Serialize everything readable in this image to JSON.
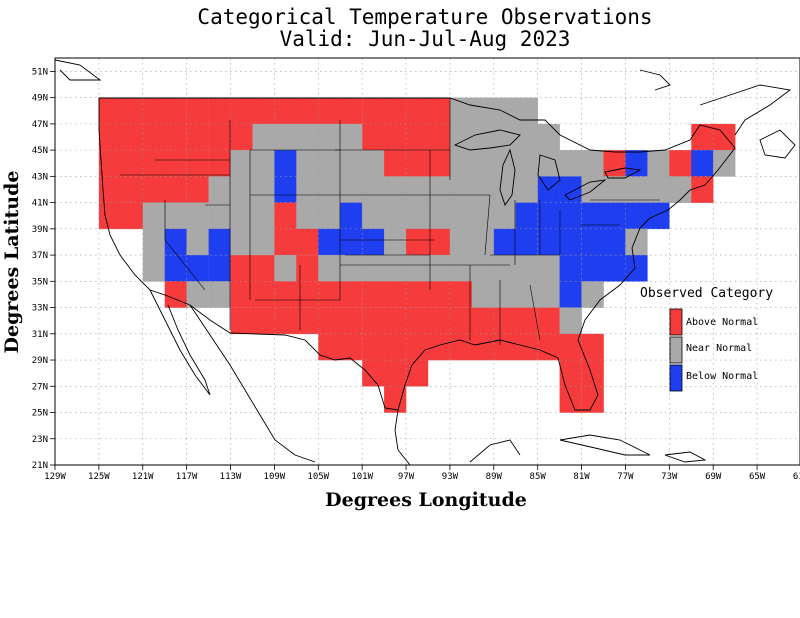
{
  "title_line1": "Categorical Temperature Observations",
  "title_line2": "Valid: Jun-Jul-Aug 2023",
  "x_axis_title": "Degrees Longitude",
  "y_axis_title": "Degrees Latitude",
  "legend": {
    "title": "Observed Category",
    "items": [
      {
        "label": "Above Normal",
        "color": "#f53b3b"
      },
      {
        "label": "Near Normal",
        "color": "#a9a9a9"
      },
      {
        "label": "Below Normal",
        "color": "#1f3ef0"
      }
    ]
  },
  "lon_ticks": [
    "129W",
    "125W",
    "121W",
    "117W",
    "113W",
    "109W",
    "105W",
    "101W",
    "97W",
    "93W",
    "89W",
    "85W",
    "81W",
    "77W",
    "73W",
    "69W",
    "65W",
    "61W"
  ],
  "lat_ticks": [
    "21N",
    "23N",
    "25N",
    "27N",
    "29N",
    "31N",
    "33N",
    "35N",
    "37N",
    "39N",
    "41N",
    "43N",
    "45N",
    "47N",
    "49N",
    "51N"
  ],
  "chart_data": {
    "type": "heatmap",
    "title": "Categorical Temperature Observations",
    "subtitle": "Valid: Jun-Jul-Aug 2023",
    "xlabel": "Degrees Longitude",
    "ylabel": "Degrees Latitude",
    "xlim": [
      "129W",
      "61W"
    ],
    "ylim": [
      "21N",
      "52N"
    ],
    "grid": true,
    "legend_position": "right",
    "categories": [
      "Above Normal",
      "Near Normal",
      "Below Normal"
    ],
    "cell_size_degrees": 2,
    "cells_note": "Each cell: [west_lon, south_lat, category] with A=Above Normal, N=Near Normal, B=Below Normal",
    "cells": [
      [
        "125W",
        "47N",
        "A"
      ],
      [
        "123W",
        "47N",
        "A"
      ],
      [
        "121W",
        "47N",
        "A"
      ],
      [
        "119W",
        "47N",
        "A"
      ],
      [
        "117W",
        "47N",
        "A"
      ],
      [
        "115W",
        "47N",
        "A"
      ],
      [
        "113W",
        "47N",
        "A"
      ],
      [
        "111W",
        "47N",
        "A"
      ],
      [
        "109W",
        "47N",
        "A"
      ],
      [
        "107W",
        "47N",
        "A"
      ],
      [
        "105W",
        "47N",
        "A"
      ],
      [
        "103W",
        "47N",
        "A"
      ],
      [
        "101W",
        "47N",
        "A"
      ],
      [
        "99W",
        "47N",
        "A"
      ],
      [
        "97W",
        "47N",
        "A"
      ],
      [
        "95W",
        "47N",
        "A"
      ],
      [
        "93W",
        "47N",
        "N"
      ],
      [
        "91W",
        "47N",
        "N"
      ],
      [
        "89W",
        "47N",
        "N"
      ],
      [
        "87W",
        "47N",
        "N"
      ],
      [
        "125W",
        "45N",
        "A"
      ],
      [
        "123W",
        "45N",
        "A"
      ],
      [
        "121W",
        "45N",
        "A"
      ],
      [
        "119W",
        "45N",
        "A"
      ],
      [
        "117W",
        "45N",
        "A"
      ],
      [
        "115W",
        "45N",
        "A"
      ],
      [
        "113W",
        "45N",
        "A"
      ],
      [
        "111W",
        "45N",
        "N"
      ],
      [
        "109W",
        "45N",
        "N"
      ],
      [
        "107W",
        "45N",
        "N"
      ],
      [
        "105W",
        "45N",
        "N"
      ],
      [
        "103W",
        "45N",
        "N"
      ],
      [
        "101W",
        "45N",
        "A"
      ],
      [
        "99W",
        "45N",
        "A"
      ],
      [
        "97W",
        "45N",
        "A"
      ],
      [
        "95W",
        "45N",
        "A"
      ],
      [
        "93W",
        "45N",
        "N"
      ],
      [
        "91W",
        "45N",
        "N"
      ],
      [
        "89W",
        "45N",
        "N"
      ],
      [
        "87W",
        "45N",
        "N"
      ],
      [
        "85W",
        "45N",
        "N"
      ],
      [
        "71W",
        "45N",
        "A"
      ],
      [
        "69W",
        "45N",
        "A"
      ],
      [
        "125W",
        "43N",
        "A"
      ],
      [
        "123W",
        "43N",
        "A"
      ],
      [
        "121W",
        "43N",
        "A"
      ],
      [
        "119W",
        "43N",
        "A"
      ],
      [
        "117W",
        "43N",
        "A"
      ],
      [
        "115W",
        "43N",
        "A"
      ],
      [
        "113W",
        "43N",
        "N"
      ],
      [
        "111W",
        "43N",
        "N"
      ],
      [
        "109W",
        "43N",
        "B"
      ],
      [
        "107W",
        "43N",
        "N"
      ],
      [
        "105W",
        "43N",
        "N"
      ],
      [
        "103W",
        "43N",
        "N"
      ],
      [
        "101W",
        "43N",
        "N"
      ],
      [
        "99W",
        "43N",
        "A"
      ],
      [
        "97W",
        "43N",
        "A"
      ],
      [
        "95W",
        "43N",
        "A"
      ],
      [
        "93W",
        "43N",
        "N"
      ],
      [
        "91W",
        "43N",
        "N"
      ],
      [
        "89W",
        "43N",
        "N"
      ],
      [
        "87W",
        "43N",
        "N"
      ],
      [
        "85W",
        "43N",
        "N"
      ],
      [
        "83W",
        "43N",
        "N"
      ],
      [
        "81W",
        "43N",
        "N"
      ],
      [
        "79W",
        "43N",
        "A"
      ],
      [
        "77W",
        "43N",
        "B"
      ],
      [
        "75W",
        "43N",
        "N"
      ],
      [
        "73W",
        "43N",
        "A"
      ],
      [
        "71W",
        "43N",
        "B"
      ],
      [
        "69W",
        "43N",
        "N"
      ],
      [
        "125W",
        "41N",
        "A"
      ],
      [
        "123W",
        "41N",
        "A"
      ],
      [
        "121W",
        "41N",
        "A"
      ],
      [
        "119W",
        "41N",
        "A"
      ],
      [
        "117W",
        "41N",
        "A"
      ],
      [
        "115W",
        "41N",
        "N"
      ],
      [
        "113W",
        "41N",
        "N"
      ],
      [
        "111W",
        "41N",
        "N"
      ],
      [
        "109W",
        "41N",
        "B"
      ],
      [
        "107W",
        "41N",
        "N"
      ],
      [
        "105W",
        "41N",
        "N"
      ],
      [
        "103W",
        "41N",
        "N"
      ],
      [
        "101W",
        "41N",
        "N"
      ],
      [
        "99W",
        "41N",
        "N"
      ],
      [
        "97W",
        "41N",
        "N"
      ],
      [
        "95W",
        "41N",
        "N"
      ],
      [
        "93W",
        "41N",
        "N"
      ],
      [
        "91W",
        "41N",
        "N"
      ],
      [
        "89W",
        "41N",
        "N"
      ],
      [
        "87W",
        "41N",
        "N"
      ],
      [
        "85W",
        "41N",
        "B"
      ],
      [
        "83W",
        "41N",
        "B"
      ],
      [
        "81W",
        "41N",
        "N"
      ],
      [
        "79W",
        "41N",
        "N"
      ],
      [
        "77W",
        "41N",
        "N"
      ],
      [
        "75W",
        "41N",
        "N"
      ],
      [
        "73W",
        "41N",
        "N"
      ],
      [
        "71W",
        "41N",
        "A"
      ],
      [
        "125W",
        "39N",
        "A"
      ],
      [
        "123W",
        "39N",
        "A"
      ],
      [
        "121W",
        "39N",
        "N"
      ],
      [
        "119W",
        "39N",
        "N"
      ],
      [
        "117W",
        "39N",
        "N"
      ],
      [
        "115W",
        "39N",
        "N"
      ],
      [
        "113W",
        "39N",
        "N"
      ],
      [
        "111W",
        "39N",
        "N"
      ],
      [
        "109W",
        "39N",
        "A"
      ],
      [
        "107W",
        "39N",
        "N"
      ],
      [
        "105W",
        "39N",
        "N"
      ],
      [
        "103W",
        "39N",
        "B"
      ],
      [
        "101W",
        "39N",
        "N"
      ],
      [
        "99W",
        "39N",
        "N"
      ],
      [
        "97W",
        "39N",
        "N"
      ],
      [
        "95W",
        "39N",
        "N"
      ],
      [
        "93W",
        "39N",
        "N"
      ],
      [
        "91W",
        "39N",
        "N"
      ],
      [
        "89W",
        "39N",
        "N"
      ],
      [
        "87W",
        "39N",
        "B"
      ],
      [
        "85W",
        "39N",
        "B"
      ],
      [
        "83W",
        "39N",
        "B"
      ],
      [
        "81W",
        "39N",
        "B"
      ],
      [
        "79W",
        "39N",
        "B"
      ],
      [
        "77W",
        "39N",
        "B"
      ],
      [
        "75W",
        "39N",
        "B"
      ],
      [
        "121W",
        "37N",
        "N"
      ],
      [
        "119W",
        "37N",
        "B"
      ],
      [
        "117W",
        "37N",
        "N"
      ],
      [
        "115W",
        "37N",
        "B"
      ],
      [
        "113W",
        "37N",
        "N"
      ],
      [
        "111W",
        "37N",
        "N"
      ],
      [
        "109W",
        "37N",
        "A"
      ],
      [
        "107W",
        "37N",
        "A"
      ],
      [
        "105W",
        "37N",
        "B"
      ],
      [
        "103W",
        "37N",
        "B"
      ],
      [
        "101W",
        "37N",
        "B"
      ],
      [
        "99W",
        "37N",
        "N"
      ],
      [
        "97W",
        "37N",
        "A"
      ],
      [
        "95W",
        "37N",
        "A"
      ],
      [
        "93W",
        "37N",
        "N"
      ],
      [
        "91W",
        "37N",
        "N"
      ],
      [
        "89W",
        "37N",
        "B"
      ],
      [
        "87W",
        "37N",
        "B"
      ],
      [
        "85W",
        "37N",
        "B"
      ],
      [
        "83W",
        "37N",
        "B"
      ],
      [
        "81W",
        "37N",
        "B"
      ],
      [
        "79W",
        "37N",
        "B"
      ],
      [
        "77W",
        "37N",
        "N"
      ],
      [
        "121W",
        "35N",
        "N"
      ],
      [
        "119W",
        "35N",
        "B"
      ],
      [
        "117W",
        "35N",
        "B"
      ],
      [
        "115W",
        "35N",
        "B"
      ],
      [
        "113W",
        "35N",
        "A"
      ],
      [
        "111W",
        "35N",
        "A"
      ],
      [
        "109W",
        "35N",
        "N"
      ],
      [
        "107W",
        "35N",
        "A"
      ],
      [
        "105W",
        "35N",
        "N"
      ],
      [
        "103W",
        "35N",
        "N"
      ],
      [
        "101W",
        "35N",
        "N"
      ],
      [
        "99W",
        "35N",
        "N"
      ],
      [
        "97W",
        "35N",
        "N"
      ],
      [
        "95W",
        "35N",
        "N"
      ],
      [
        "93W",
        "35N",
        "N"
      ],
      [
        "91W",
        "35N",
        "N"
      ],
      [
        "89W",
        "35N",
        "N"
      ],
      [
        "87W",
        "35N",
        "N"
      ],
      [
        "85W",
        "35N",
        "N"
      ],
      [
        "83W",
        "35N",
        "B"
      ],
      [
        "81W",
        "35N",
        "B"
      ],
      [
        "79W",
        "35N",
        "B"
      ],
      [
        "77W",
        "35N",
        "B"
      ],
      [
        "119W",
        "33N",
        "A"
      ],
      [
        "117W",
        "33N",
        "N"
      ],
      [
        "115W",
        "33N",
        "N"
      ],
      [
        "113W",
        "33N",
        "A"
      ],
      [
        "111W",
        "33N",
        "A"
      ],
      [
        "109W",
        "33N",
        "A"
      ],
      [
        "107W",
        "33N",
        "A"
      ],
      [
        "105W",
        "33N",
        "A"
      ],
      [
        "103W",
        "33N",
        "A"
      ],
      [
        "101W",
        "33N",
        "A"
      ],
      [
        "99W",
        "33N",
        "A"
      ],
      [
        "97W",
        "33N",
        "A"
      ],
      [
        "95W",
        "33N",
        "A"
      ],
      [
        "93W",
        "33N",
        "A"
      ],
      [
        "91W",
        "33N",
        "N"
      ],
      [
        "89W",
        "33N",
        "N"
      ],
      [
        "87W",
        "33N",
        "N"
      ],
      [
        "85W",
        "33N",
        "N"
      ],
      [
        "83W",
        "33N",
        "B"
      ],
      [
        "81W",
        "33N",
        "N"
      ],
      [
        "113W",
        "31N",
        "A"
      ],
      [
        "111W",
        "31N",
        "A"
      ],
      [
        "109W",
        "31N",
        "A"
      ],
      [
        "107W",
        "31N",
        "A"
      ],
      [
        "105W",
        "31N",
        "A"
      ],
      [
        "103W",
        "31N",
        "A"
      ],
      [
        "101W",
        "31N",
        "A"
      ],
      [
        "99W",
        "31N",
        "A"
      ],
      [
        "97W",
        "31N",
        "A"
      ],
      [
        "95W",
        "31N",
        "A"
      ],
      [
        "93W",
        "31N",
        "A"
      ],
      [
        "91W",
        "31N",
        "A"
      ],
      [
        "89W",
        "31N",
        "A"
      ],
      [
        "87W",
        "31N",
        "A"
      ],
      [
        "85W",
        "31N",
        "A"
      ],
      [
        "83W",
        "31N",
        "N"
      ],
      [
        "105W",
        "29N",
        "A"
      ],
      [
        "103W",
        "29N",
        "A"
      ],
      [
        "101W",
        "29N",
        "A"
      ],
      [
        "99W",
        "29N",
        "A"
      ],
      [
        "97W",
        "29N",
        "A"
      ],
      [
        "95W",
        "29N",
        "A"
      ],
      [
        "93W",
        "29N",
        "A"
      ],
      [
        "91W",
        "29N",
        "A"
      ],
      [
        "89W",
        "29N",
        "A"
      ],
      [
        "87W",
        "29N",
        "A"
      ],
      [
        "85W",
        "29N",
        "A"
      ],
      [
        "83W",
        "29N",
        "A"
      ],
      [
        "81W",
        "29N",
        "A"
      ],
      [
        "101W",
        "27N",
        "A"
      ],
      [
        "99W",
        "27N",
        "A"
      ],
      [
        "97W",
        "27N",
        "A"
      ],
      [
        "83W",
        "27N",
        "A"
      ],
      [
        "81W",
        "27N",
        "A"
      ],
      [
        "99W",
        "25N",
        "A"
      ],
      [
        "83W",
        "25N",
        "A"
      ],
      [
        "81W",
        "25N",
        "A"
      ]
    ]
  }
}
